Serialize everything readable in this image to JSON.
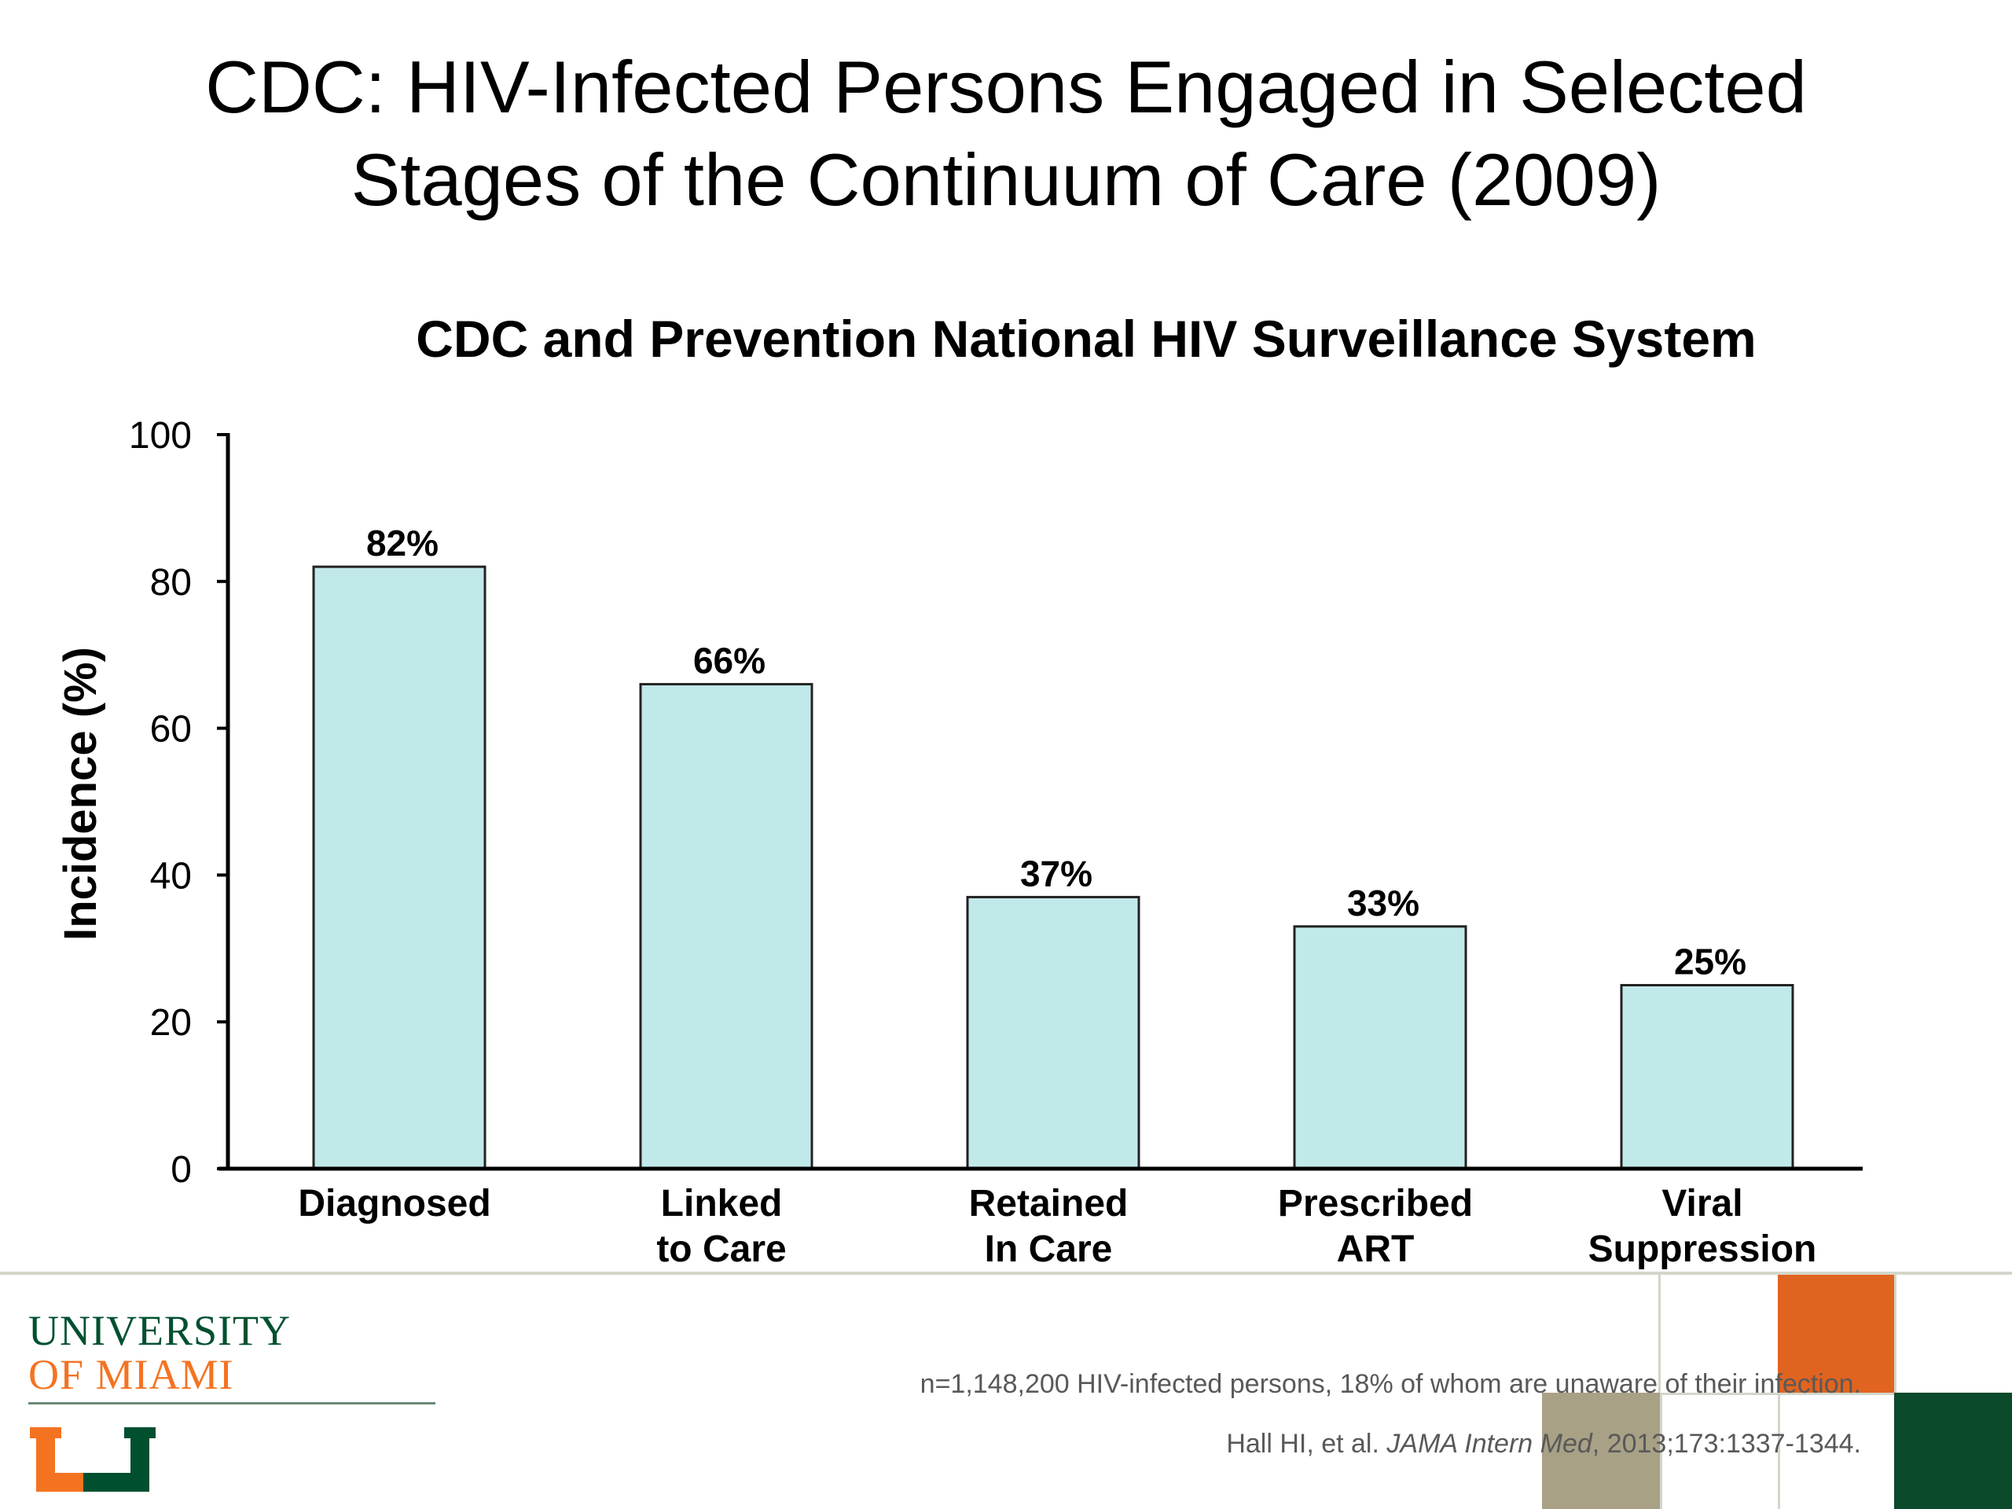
{
  "slide": {
    "title_line1": "CDC: HIV-Infected Persons Engaged in Selected",
    "title_line2": "Stages of the Continuum of Care (2009)"
  },
  "chart_data": {
    "type": "bar",
    "title": "CDC and Prevention National HIV Surveillance System",
    "categories": [
      [
        "Diagnosed"
      ],
      [
        "Linked",
        "to Care"
      ],
      [
        "Retained",
        "In Care"
      ],
      [
        "Prescribed",
        "ART"
      ],
      [
        "Viral",
        "Suppression"
      ]
    ],
    "values": [
      82,
      66,
      37,
      33,
      25
    ],
    "data_labels": [
      "82%",
      "66%",
      "37%",
      "33%",
      "25%"
    ],
    "ylabel": "Incidence (%)",
    "xlabel": "",
    "ylim": [
      0,
      100
    ],
    "yticks": [
      0,
      20,
      40,
      60,
      80,
      100
    ],
    "grid": false,
    "legend": "none",
    "bar_color": "#c2e9ea",
    "bar_edge_color": "#222222"
  },
  "footer": {
    "logo_line1": "UNIVERSITY",
    "logo_line2": "OF MIAMI",
    "logo_mark": "U-logo-icon",
    "note": "n=1,148,200 HIV-infected persons, 18% of whom are unaware of their infection.",
    "citation_authors": "Hall HI, et al.",
    "citation_journal": "JAMA Intern Med",
    "citation_rest": ", 2013;173:1337-1344."
  },
  "colors": {
    "um_green": "#005030",
    "um_orange": "#f47321",
    "deco_orange": "#e06420",
    "deco_green": "#0c4a2c",
    "deco_khaki": "#a8a186",
    "grid_line": "#d3d6c9"
  }
}
